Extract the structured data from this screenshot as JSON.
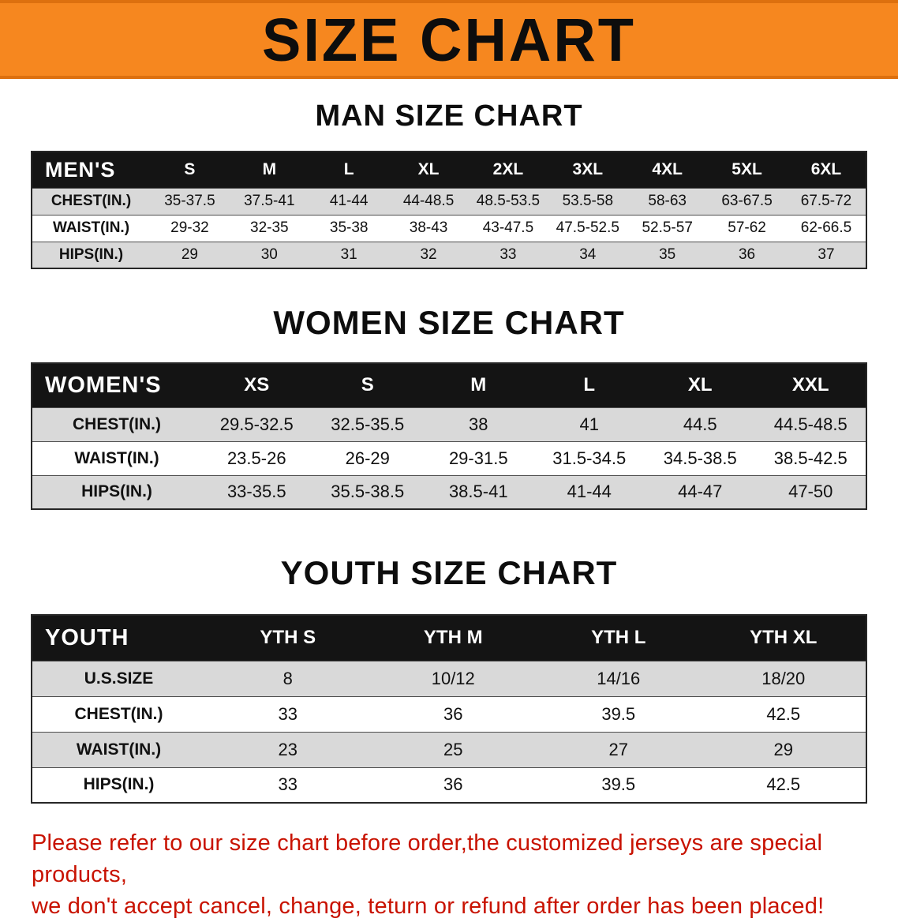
{
  "banner": {
    "title": "SIZE CHART"
  },
  "colors": {
    "banner_orange": "#f6871f",
    "table_header_black": "#141414",
    "row_gray": "#d9d9d9",
    "note_red": "#c81200"
  },
  "tables": [
    {
      "name": "men",
      "heading": "MAN SIZE CHART",
      "columns": [
        "MEN'S",
        "S",
        "M",
        "L",
        "XL",
        "2XL",
        "3XL",
        "4XL",
        "5XL",
        "6XL"
      ],
      "rows": [
        [
          "CHEST(IN.)",
          "35-37.5",
          "37.5-41",
          "41-44",
          "44-48.5",
          "48.5-53.5",
          "53.5-58",
          "58-63",
          "63-67.5",
          "67.5-72"
        ],
        [
          "WAIST(IN.)",
          "29-32",
          "32-35",
          "35-38",
          "38-43",
          "43-47.5",
          "47.5-52.5",
          "52.5-57",
          "57-62",
          "62-66.5"
        ],
        [
          "HIPS(IN.)",
          "29",
          "30",
          "31",
          "32",
          "33",
          "34",
          "35",
          "36",
          "37"
        ]
      ],
      "row_shading": [
        "gray",
        "white",
        "gray"
      ]
    },
    {
      "name": "women",
      "heading": "WOMEN SIZE CHART",
      "columns": [
        "WOMEN'S",
        "XS",
        "S",
        "M",
        "L",
        "XL",
        "XXL"
      ],
      "rows": [
        [
          "CHEST(IN.)",
          "29.5-32.5",
          "32.5-35.5",
          "38",
          "41",
          "44.5",
          "44.5-48.5"
        ],
        [
          "WAIST(IN.)",
          "23.5-26",
          "26-29",
          "29-31.5",
          "31.5-34.5",
          "34.5-38.5",
          "38.5-42.5"
        ],
        [
          "HIPS(IN.)",
          "33-35.5",
          "35.5-38.5",
          "38.5-41",
          "41-44",
          "44-47",
          "47-50"
        ]
      ],
      "row_shading": [
        "gray",
        "white",
        "gray"
      ]
    },
    {
      "name": "youth",
      "heading": "YOUTH SIZE CHART",
      "columns": [
        "YOUTH",
        "YTH S",
        "YTH M",
        "YTH L",
        "YTH XL"
      ],
      "rows": [
        [
          "U.S.SIZE",
          "8",
          "10/12",
          "14/16",
          "18/20"
        ],
        [
          "CHEST(IN.)",
          "33",
          "36",
          "39.5",
          "42.5"
        ],
        [
          "WAIST(IN.)",
          "23",
          "25",
          "27",
          "29"
        ],
        [
          "HIPS(IN.)",
          "33",
          "36",
          "39.5",
          "42.5"
        ]
      ],
      "row_shading": [
        "gray",
        "white",
        "gray",
        "white"
      ]
    }
  ],
  "note": {
    "line1": "Please refer to our size chart before order,the customized jerseys are special products,",
    "line2": "we don't accept cancel, change, teturn or refund after order has been placed!"
  }
}
